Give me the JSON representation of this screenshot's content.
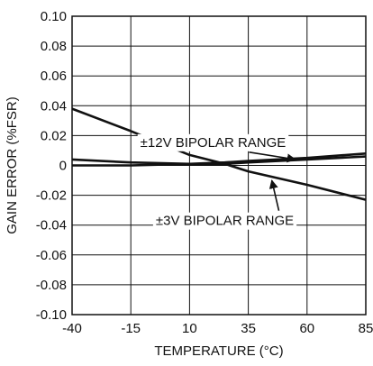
{
  "chart_data": {
    "type": "line",
    "xlabel": "TEMPERATURE (°C)",
    "ylabel": "GAIN ERROR (%FSR)",
    "xlim": [
      -40,
      85
    ],
    "ylim": [
      -0.1,
      0.1
    ],
    "xticks": [
      -40,
      -15,
      10,
      35,
      60,
      85
    ],
    "yticks": [
      -0.1,
      -0.08,
      -0.06,
      -0.04,
      -0.02,
      0,
      0.02,
      0.04,
      0.06,
      0.08,
      0.1
    ],
    "xtick_labels": [
      "-40",
      "-15",
      "10",
      "35",
      "60",
      "85"
    ],
    "ytick_labels": [
      "-0.10",
      "-0.08",
      "-0.06",
      "-0.04",
      "-0.02",
      "0",
      "0.02",
      "0.04",
      "0.06",
      "0.08",
      "0.10"
    ],
    "grid": true,
    "series": [
      {
        "x": [
          -40,
          -15,
          10,
          25,
          35,
          60,
          85
        ],
        "values": [
          0.038,
          0.023,
          0.007,
          0.001,
          -0.004,
          -0.013,
          -0.023
        ]
      },
      {
        "x": [
          -40,
          -15,
          10,
          25,
          35,
          60,
          85
        ],
        "values": [
          0.004,
          0.002,
          0.001,
          0.001,
          0.002,
          0.004,
          0.006
        ]
      },
      {
        "x": [
          -40,
          -15,
          10,
          25,
          35,
          60,
          85
        ],
        "values": [
          0.0,
          0.0,
          0.001,
          0.002,
          0.003,
          0.005,
          0.008
        ]
      }
    ],
    "annotations": [
      {
        "text": "±12V BIPOLAR RANGE",
        "x": 20,
        "y": 0.0125,
        "arrow_to": [
          55,
          0.004
        ]
      },
      {
        "text": "±3V BIPOLAR RANGE",
        "x": 25,
        "y": -0.04,
        "arrow_to": [
          45,
          -0.01
        ]
      }
    ]
  }
}
